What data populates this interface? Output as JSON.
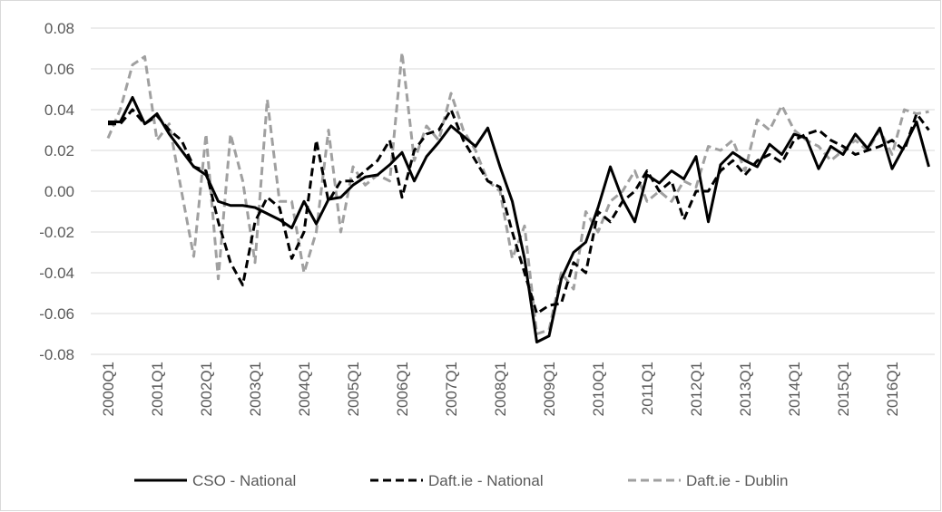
{
  "chart_data": {
    "type": "line",
    "categories": [
      "2000Q1",
      null,
      null,
      null,
      "2001Q1",
      null,
      null,
      null,
      "2002Q1",
      null,
      null,
      null,
      "2003Q1",
      null,
      null,
      null,
      "2004Q1",
      null,
      null,
      null,
      "2005Q1",
      null,
      null,
      null,
      "2006Q1",
      null,
      null,
      null,
      "2007Q1",
      null,
      null,
      null,
      "2008Q1",
      null,
      null,
      null,
      "2009Q1",
      null,
      null,
      null,
      "2010Q1",
      null,
      null,
      null,
      "2011Q1",
      null,
      null,
      null,
      "2012Q1",
      null,
      null,
      null,
      "2013Q1",
      null,
      null,
      null,
      "2014Q1",
      null,
      null,
      null,
      "2015Q1",
      null,
      null,
      null,
      "2016Q1",
      null,
      null,
      null
    ],
    "series": [
      {
        "name": "CSO - National",
        "color": "#000000",
        "dash": false,
        "values": [
          0.034,
          0.034,
          0.046,
          0.033,
          0.038,
          0.028,
          0.02,
          0.012,
          0.008,
          -0.005,
          -0.007,
          -0.007,
          -0.008,
          -0.011,
          -0.014,
          -0.018,
          -0.005,
          -0.016,
          -0.004,
          -0.003,
          0.003,
          0.007,
          0.008,
          0.013,
          0.019,
          0.005,
          0.017,
          0.024,
          0.032,
          0.027,
          0.022,
          0.031,
          0.012,
          -0.005,
          -0.033,
          -0.074,
          -0.071,
          -0.043,
          -0.03,
          -0.025,
          -0.008,
          0.012,
          -0.004,
          -0.015,
          0.008,
          0.004,
          0.01,
          0.006,
          0.017,
          -0.015,
          0.013,
          0.019,
          0.015,
          0.012,
          0.023,
          0.018,
          0.028,
          0.026,
          0.011,
          0.022,
          0.018,
          0.028,
          0.021,
          0.031,
          0.011,
          0.022,
          0.034,
          0.012
        ]
      },
      {
        "name": "Daft.ie - National",
        "color": "#000000",
        "dash": true,
        "values": [
          0.033,
          0.033,
          0.04,
          0.033,
          0.037,
          0.03,
          0.025,
          0.012,
          0.01,
          -0.015,
          -0.035,
          -0.046,
          -0.015,
          -0.003,
          -0.008,
          -0.033,
          -0.02,
          0.025,
          -0.005,
          0.005,
          0.005,
          0.01,
          0.015,
          0.025,
          -0.003,
          0.02,
          0.028,
          0.03,
          0.04,
          0.025,
          0.015,
          0.005,
          0.002,
          -0.02,
          -0.04,
          -0.06,
          -0.056,
          -0.055,
          -0.035,
          -0.04,
          -0.01,
          -0.015,
          -0.005,
          0.0,
          0.01,
          0.0,
          0.005,
          -0.014,
          0.0,
          0.0,
          0.01,
          0.015,
          0.008,
          0.015,
          0.018,
          0.014,
          0.025,
          0.028,
          0.03,
          0.025,
          0.022,
          0.018,
          0.02,
          0.022,
          0.025,
          0.02,
          0.038,
          0.03
        ]
      },
      {
        "name": "Daft.ie - Dublin",
        "color": "#a0a0a0",
        "dash": true,
        "values": [
          0.026,
          0.04,
          0.062,
          0.066,
          0.025,
          0.033,
          0.0,
          -0.032,
          0.028,
          -0.043,
          0.028,
          0.005,
          -0.035,
          0.045,
          -0.005,
          -0.005,
          -0.04,
          -0.02,
          0.03,
          -0.02,
          0.012,
          0.003,
          0.008,
          0.005,
          0.068,
          0.015,
          0.032,
          0.025,
          0.048,
          0.03,
          0.02,
          0.005,
          0.0,
          -0.033,
          -0.017,
          -0.07,
          -0.068,
          -0.04,
          -0.048,
          -0.01,
          -0.02,
          -0.005,
          0.0,
          0.01,
          -0.005,
          0.0,
          -0.005,
          0.005,
          0.002,
          0.022,
          0.02,
          0.025,
          0.01,
          0.035,
          0.03,
          0.042,
          0.03,
          0.025,
          0.022,
          0.015,
          0.02,
          0.025,
          0.02,
          0.03,
          0.018,
          0.04,
          0.038,
          0.039
        ]
      }
    ],
    "ylim": [
      -0.08,
      0.08
    ],
    "yticks": [
      -0.08,
      -0.06,
      -0.04,
      -0.02,
      {
        "value": 0,
        "label": "0.00"
      },
      0.02,
      0.04,
      0.06,
      0.08
    ],
    "grid": true,
    "legend": "bottom"
  }
}
